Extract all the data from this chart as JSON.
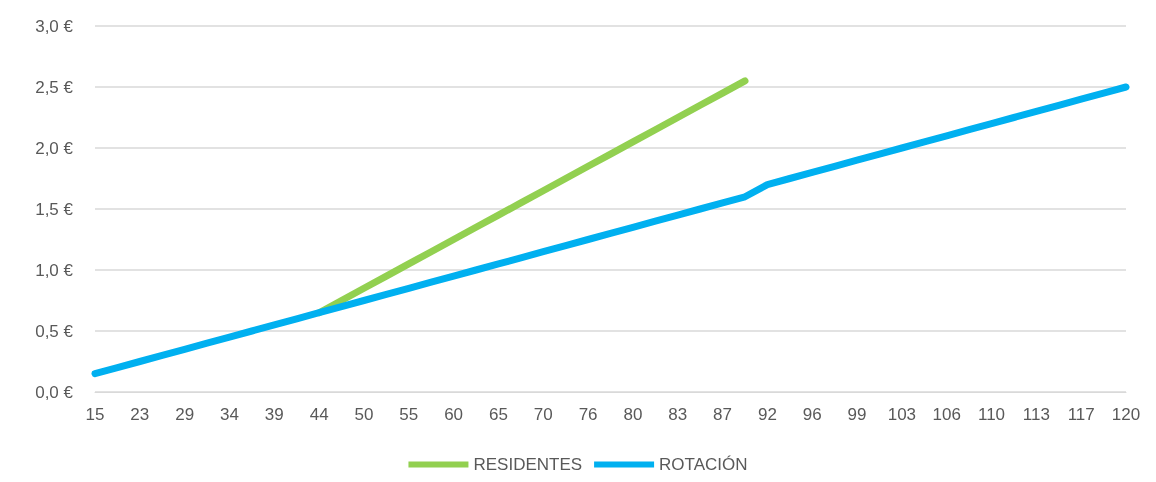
{
  "chart_data": {
    "type": "line",
    "categories": [
      "15",
      null,
      "23",
      null,
      "29",
      null,
      "34",
      null,
      "39",
      null,
      "44",
      null,
      "50",
      null,
      "55",
      null,
      "60",
      null,
      "65",
      null,
      "70",
      null,
      "76",
      null,
      "80",
      null,
      "83",
      null,
      "87",
      null,
      "92",
      null,
      "96",
      null,
      "99",
      null,
      "103",
      null,
      "106",
      null,
      "110",
      null,
      "113",
      null,
      "117",
      null,
      "120"
    ],
    "series": [
      {
        "name": "RESIDENTES",
        "color": "#92d050",
        "values": [
          null,
          null,
          null,
          null,
          null,
          null,
          null,
          null,
          null,
          null,
          0.65,
          0.75,
          0.85,
          0.95,
          1.05,
          1.15,
          1.25,
          1.35,
          1.45,
          1.55,
          1.65,
          1.75,
          1.85,
          1.95,
          2.05,
          2.15,
          2.25,
          2.35,
          2.45,
          2.55,
          null,
          null,
          null,
          null,
          null,
          null,
          null,
          null,
          null,
          null,
          null,
          null,
          null,
          null,
          null,
          null,
          null
        ]
      },
      {
        "name": "ROTACIÓN",
        "color": "#00b0f0",
        "values": [
          0.15,
          0.2,
          0.25,
          0.3,
          0.35,
          0.4,
          0.45,
          0.5,
          0.55,
          0.6,
          0.65,
          0.7,
          0.75,
          0.8,
          0.85,
          0.9,
          0.95,
          1.0,
          1.05,
          1.1,
          1.15,
          1.2,
          1.25,
          1.3,
          1.35,
          1.4,
          1.45,
          1.5,
          1.55,
          1.6,
          1.7,
          1.75,
          1.8,
          1.85,
          1.9,
          1.95,
          2.0,
          2.05,
          2.1,
          2.15,
          2.2,
          2.25,
          2.3,
          2.35,
          2.4,
          2.45,
          2.5
        ]
      }
    ],
    "ylim": [
      0,
      3
    ],
    "yticks": [
      {
        "value": 0,
        "label": "0,0 €"
      },
      {
        "value": 0.5,
        "label": "0,5 €"
      },
      {
        "value": 1,
        "label": "1,0 €"
      },
      {
        "value": 1.5,
        "label": "1,5 €"
      },
      {
        "value": 2,
        "label": "2,0 €"
      },
      {
        "value": 2.5,
        "label": "2,5 €"
      },
      {
        "value": 3,
        "label": "3,0 €"
      }
    ],
    "grid": "y",
    "legend": "bottom",
    "marker": "none",
    "line_style": "solid"
  }
}
